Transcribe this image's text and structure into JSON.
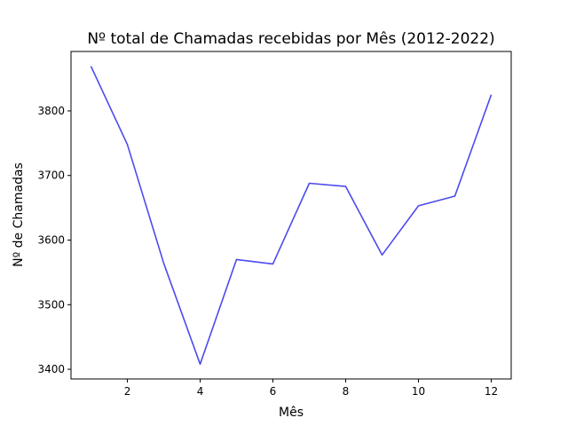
{
  "chart_data": {
    "type": "line",
    "title": "Nº total de Chamadas recebidas por Mês (2012-2022)",
    "xlabel": "Mês",
    "ylabel": "Nº de Chamadas",
    "x": [
      1,
      2,
      3,
      4,
      5,
      6,
      7,
      8,
      9,
      10,
      11,
      12
    ],
    "series": [
      {
        "values": [
          3869,
          3748,
          3564,
          3408,
          3570,
          3563,
          3688,
          3683,
          3577,
          3653,
          3668,
          3825
        ],
        "color": "#4b4bef"
      }
    ],
    "xlim": [
      0.45,
      12.55
    ],
    "ylim": [
      3385,
      3892
    ],
    "xticks": [
      2,
      4,
      6,
      8,
      10,
      12
    ],
    "yticks": [
      3400,
      3500,
      3600,
      3700,
      3800
    ],
    "grid": false,
    "legend": "none"
  }
}
